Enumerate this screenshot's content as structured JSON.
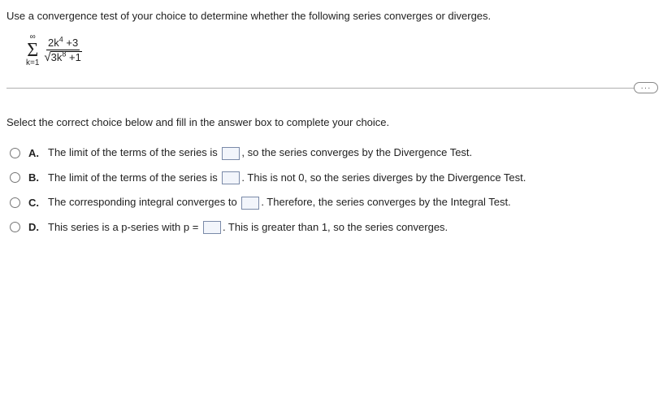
{
  "question": "Use a convergence test of your choice to determine whether the following series converges or diverges.",
  "formula": {
    "sigma_top": "∞",
    "sigma_bottom": "k=1",
    "numerator_a": "2k",
    "numerator_exp": "4",
    "numerator_tail": " +3",
    "denom_coef": "3k",
    "denom_exp": "8",
    "denom_tail": " +1"
  },
  "instruction": "Select the correct choice below and fill in the answer box to complete your choice.",
  "choices": {
    "A": {
      "letter": "A.",
      "pre": "The limit of the terms of the series is ",
      "post": ", so the series converges by the Divergence Test."
    },
    "B": {
      "letter": "B.",
      "pre": "The limit of the terms of the series is ",
      "post": ". This is not 0, so the series diverges by the Divergence Test."
    },
    "C": {
      "letter": "C.",
      "pre": "The corresponding integral converges to ",
      "post": ". Therefore, the series converges by the Integral Test."
    },
    "D": {
      "letter": "D.",
      "pre": "This series is a p-series with p = ",
      "post": ". This is greater than 1, so the series converges."
    }
  },
  "more_label": "···"
}
